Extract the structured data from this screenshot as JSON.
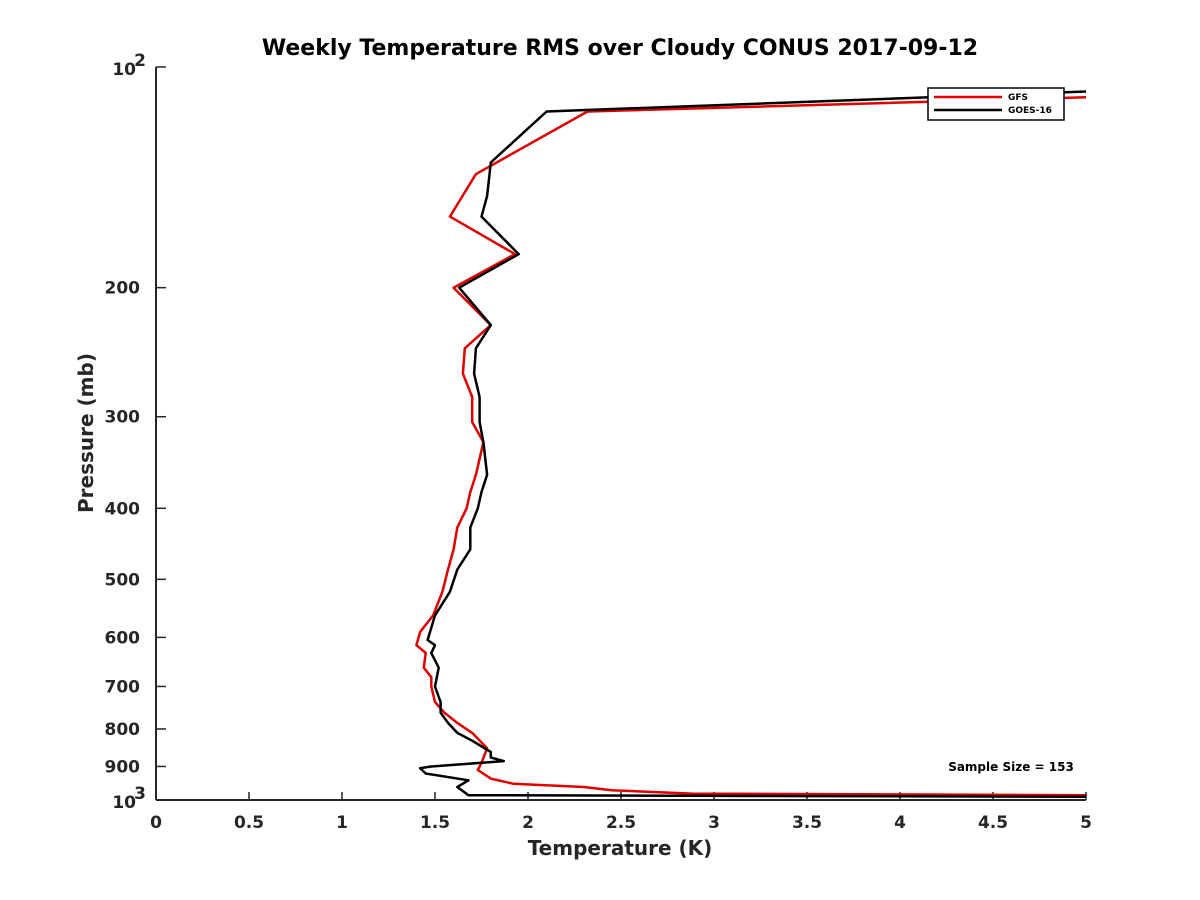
{
  "chart_data": {
    "type": "line",
    "title": "Weekly Temperature RMS over Cloudy CONUS 2017-09-12",
    "xlabel": "Temperature (K)",
    "ylabel": "Pressure (mb)",
    "xlim": [
      0,
      5
    ],
    "ylim": [
      100,
      1000
    ],
    "y_scale": "log",
    "y_reversed": true,
    "x_ticks": [
      0,
      0.5,
      1,
      1.5,
      2,
      2.5,
      3,
      3.5,
      4,
      4.5,
      5
    ],
    "x_tick_labels": [
      "0",
      "0.5",
      "1",
      "1.5",
      "2",
      "2.5",
      "3",
      "3.5",
      "4",
      "4.5",
      "5"
    ],
    "y_ticks": [
      200,
      300,
      400,
      500,
      600,
      700,
      800,
      900
    ],
    "y_tick_labels": [
      "200",
      "300",
      "400",
      "500",
      "600",
      "700",
      "800",
      "900"
    ],
    "y_power_ticks": [
      {
        "value": 100,
        "base": "10",
        "exp": "2"
      },
      {
        "value": 1000,
        "base": "10",
        "exp": "3"
      }
    ],
    "grid": false,
    "legend_position": "top-right",
    "annotation": "Sample Size = 153",
    "series": [
      {
        "name": "GFS",
        "color": "#e00000",
        "x": [
          5.0,
          2.32,
          1.72,
          1.58,
          1.93,
          1.6,
          1.8,
          1.66,
          1.65,
          1.7,
          1.7,
          1.76,
          1.72,
          1.69,
          1.67,
          1.62,
          1.6,
          1.57,
          1.54,
          1.49,
          1.42,
          1.4,
          1.45,
          1.44,
          1.48,
          1.48,
          1.5,
          1.55,
          1.62,
          1.7,
          1.78,
          1.75,
          1.73,
          1.8,
          1.92,
          2.3,
          2.45,
          2.88,
          5.0
        ],
        "y": [
          110,
          115,
          140,
          160,
          180,
          200,
          225,
          242,
          262,
          282,
          305,
          325,
          360,
          380,
          400,
          425,
          455,
          485,
          520,
          560,
          590,
          615,
          630,
          660,
          680,
          700,
          735,
          760,
          785,
          810,
          850,
          890,
          910,
          935,
          950,
          960,
          970,
          980,
          985
        ]
      },
      {
        "name": "GOES-16",
        "color": "#000000",
        "x": [
          5.0,
          2.1,
          1.8,
          1.78,
          1.75,
          1.95,
          1.63,
          1.8,
          1.72,
          1.71,
          1.74,
          1.74,
          1.76,
          1.78,
          1.75,
          1.73,
          1.69,
          1.69,
          1.62,
          1.58,
          1.5,
          1.46,
          1.5,
          1.48,
          1.52,
          1.5,
          1.53,
          1.53,
          1.57,
          1.62,
          1.7,
          1.8,
          1.8,
          1.87,
          1.48,
          1.42,
          1.45,
          1.68,
          1.62,
          1.68,
          5.0
        ],
        "y": [
          108,
          115,
          135,
          150,
          160,
          180,
          200,
          225,
          242,
          262,
          282,
          305,
          325,
          360,
          380,
          400,
          425,
          455,
          485,
          520,
          560,
          605,
          615,
          630,
          660,
          700,
          735,
          760,
          785,
          810,
          830,
          860,
          875,
          885,
          900,
          905,
          920,
          940,
          960,
          985,
          990
        ]
      }
    ]
  }
}
